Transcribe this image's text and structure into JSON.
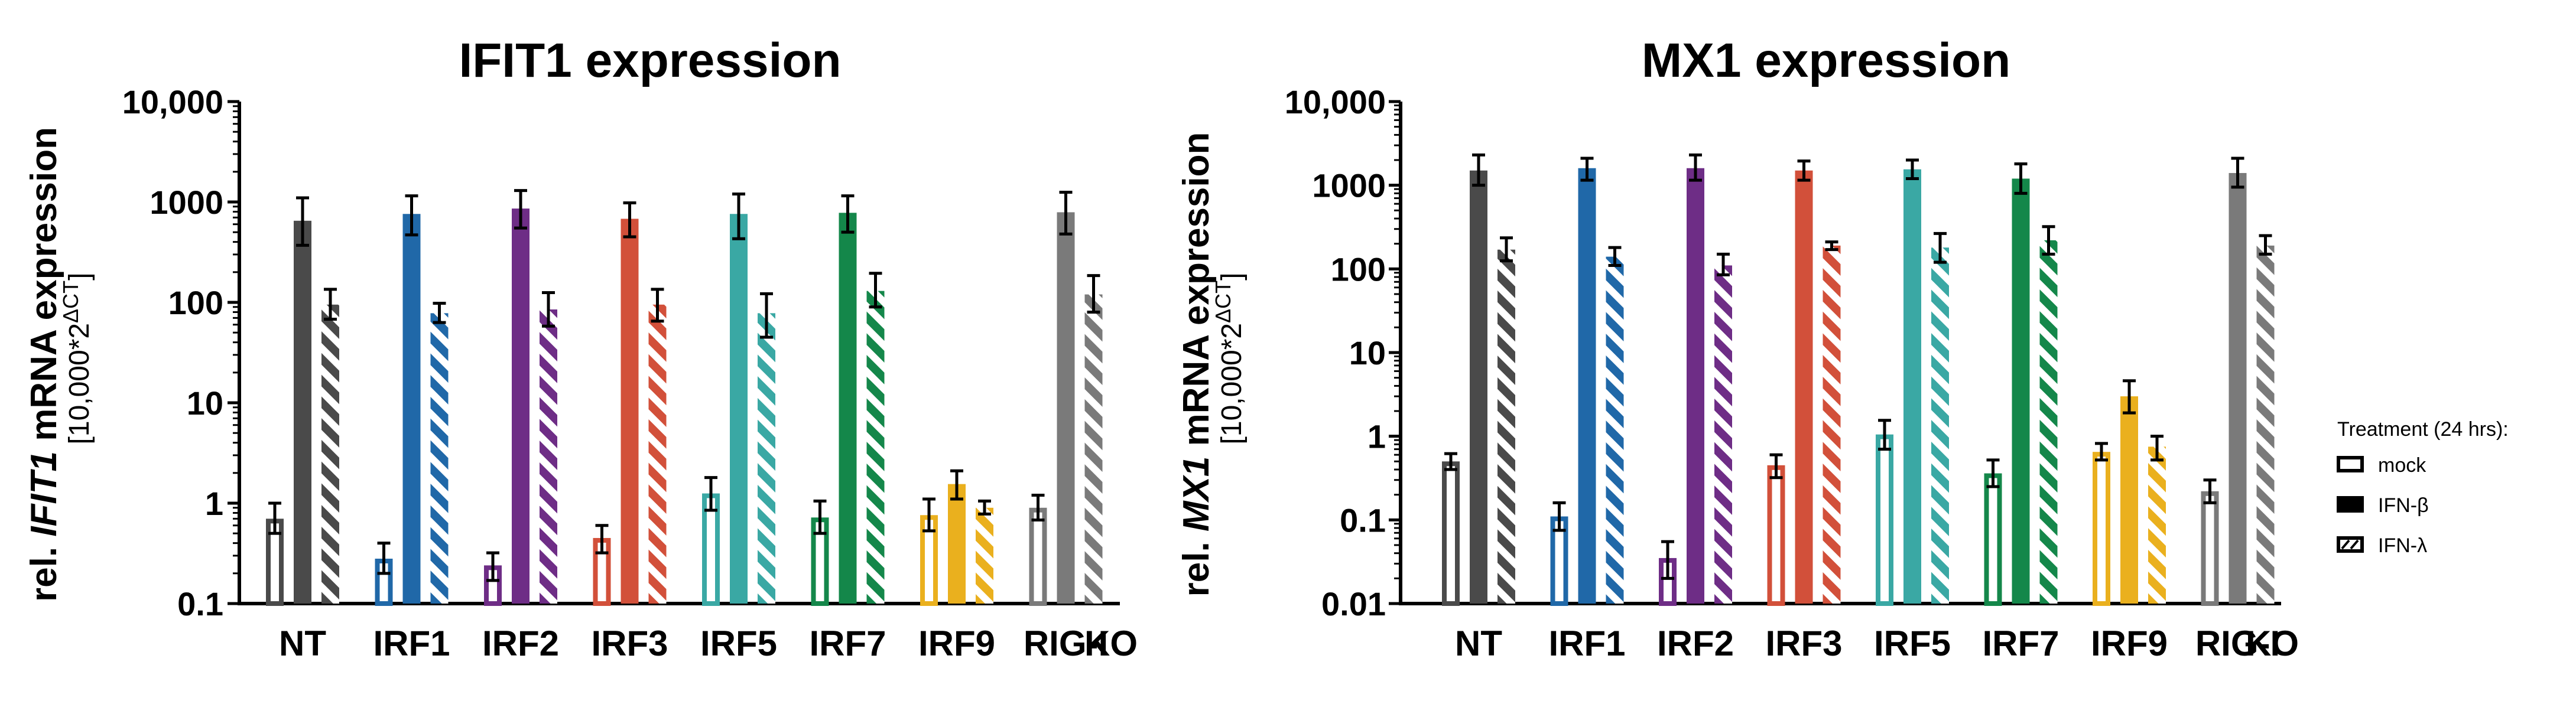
{
  "chart_data": [
    {
      "type": "bar",
      "scale": "log",
      "title": "IFIT1 expression",
      "ylabel_prefix": "rel. ",
      "ylabel_gene": "IFIT1",
      "ylabel_suffix": " mRNA expression",
      "ylabel_line2": "[10,000*2",
      "ylabel_sup": "ΔCT",
      "ylabel_close": "]",
      "ylim": [
        0.1,
        10000
      ],
      "yticks": [
        0.1,
        1,
        10,
        100,
        1000,
        10000
      ],
      "ytick_labels": [
        "0.1",
        "1",
        "10",
        "100",
        "1000",
        "10,000"
      ],
      "categories": [
        "NT",
        "IRF1",
        "IRF2",
        "IRF3",
        "IRF5",
        "IRF7",
        "IRF9",
        "RIG-I"
      ],
      "xlabel_suffix": "KO",
      "series": [
        {
          "name": "mock",
          "values": [
            0.7,
            0.28,
            0.24,
            0.45,
            1.25,
            0.72,
            0.76,
            0.9
          ],
          "err_low": [
            0.5,
            0.2,
            0.17,
            0.32,
            0.85,
            0.5,
            0.53,
            0.68
          ],
          "err_high": [
            1.0,
            0.4,
            0.32,
            0.6,
            1.8,
            1.05,
            1.1,
            1.2
          ]
        },
        {
          "name": "IFN-β",
          "values": [
            650,
            760,
            860,
            680,
            760,
            780,
            1.55,
            790
          ],
          "err_low": [
            370,
            470,
            550,
            450,
            430,
            500,
            1.1,
            480
          ],
          "err_high": [
            1100,
            1150,
            1300,
            980,
            1200,
            1150,
            2.1,
            1250
          ]
        },
        {
          "name": "IFN-λ",
          "values": [
            95,
            78,
            85,
            95,
            78,
            130,
            0.9,
            120
          ],
          "err_low": [
            68,
            63,
            58,
            65,
            45,
            90,
            0.78,
            80
          ],
          "err_high": [
            135,
            98,
            125,
            135,
            122,
            195,
            1.05,
            185
          ]
        }
      ]
    },
    {
      "type": "bar",
      "scale": "log",
      "title": "MX1 expression",
      "ylabel_prefix": "rel. ",
      "ylabel_gene": "MX1",
      "ylabel_suffix": " mRNA expression",
      "ylabel_line2": "[10,000*2",
      "ylabel_sup": "ΔCT",
      "ylabel_close": "]",
      "ylim": [
        0.01,
        10000
      ],
      "yticks": [
        0.01,
        0.1,
        1,
        10,
        100,
        1000,
        10000
      ],
      "ytick_labels": [
        "0.01",
        "0.1",
        "1",
        "10",
        "100",
        "1000",
        "10,000"
      ],
      "categories": [
        "NT",
        "IRF1",
        "IRF2",
        "IRF3",
        "IRF5",
        "IRF7",
        "IRF9",
        "RIG-I"
      ],
      "xlabel_suffix": "KO",
      "series": [
        {
          "name": "mock",
          "values": [
            0.5,
            0.11,
            0.035,
            0.45,
            1.05,
            0.36,
            0.65,
            0.22
          ],
          "err_low": [
            0.4,
            0.075,
            0.02,
            0.32,
            0.7,
            0.25,
            0.52,
            0.16
          ],
          "err_high": [
            0.62,
            0.16,
            0.055,
            0.6,
            1.55,
            0.52,
            0.82,
            0.3
          ]
        },
        {
          "name": "IFN-β",
          "values": [
            1500,
            1600,
            1600,
            1500,
            1550,
            1200,
            3.0,
            1400
          ],
          "err_low": [
            1000,
            1150,
            1150,
            1150,
            1200,
            800,
            1.9,
            950
          ],
          "err_high": [
            2300,
            2100,
            2300,
            1950,
            2000,
            1800,
            4.6,
            2100
          ]
        },
        {
          "name": "IFN-λ",
          "values": [
            170,
            140,
            110,
            190,
            180,
            220,
            0.75,
            190
          ],
          "err_low": [
            125,
            110,
            85,
            170,
            120,
            150,
            0.52,
            150
          ],
          "err_high": [
            235,
            180,
            150,
            210,
            265,
            320,
            1.0,
            250
          ]
        }
      ]
    }
  ],
  "legend": {
    "title": "Treatment (24 hrs):",
    "items": [
      "mock",
      "IFN-β",
      "IFN-λ"
    ]
  },
  "colors": {
    "NT": "#4a4a4a",
    "IRF1": "#2068a8",
    "IRF2": "#6e2d86",
    "IRF3": "#d2503a",
    "IRF5": "#3aa8a4",
    "IRF7": "#14874a",
    "IRF9": "#eab01e",
    "RIG-I": "#7a7a7a"
  }
}
